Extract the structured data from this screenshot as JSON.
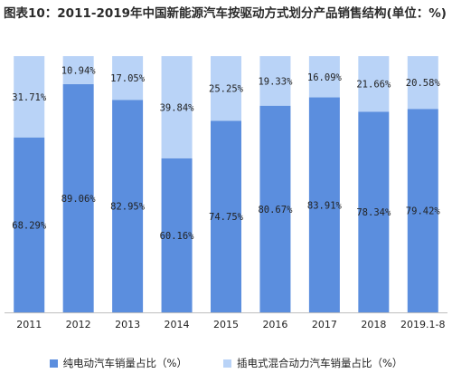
{
  "chart_data": {
    "type": "bar",
    "stacked": true,
    "percent": true,
    "title": "图表10：2011-2019年中国新能源汽车按驱动方式划分产品销售结构(单位：%)",
    "categories": [
      "2011",
      "2012",
      "2013",
      "2014",
      "2015",
      "2016",
      "2017",
      "2018",
      "2019.1-8"
    ],
    "series": [
      {
        "name": "纯电动汽车销量占比（%）",
        "color": "#5b8ede",
        "values": [
          68.29,
          89.06,
          82.95,
          60.16,
          74.75,
          80.67,
          83.91,
          78.34,
          79.42
        ],
        "labels": [
          "68.29%",
          "89.06%",
          "82.95%",
          "60.16%",
          "74.75%",
          "80.67%",
          "83.91%",
          "78.34%",
          "79.42%"
        ]
      },
      {
        "name": "插电式混合动力汽车销量占比（%）",
        "color": "#b9d3f7",
        "values": [
          31.71,
          10.94,
          17.05,
          39.84,
          25.25,
          19.33,
          16.09,
          21.66,
          20.58
        ],
        "labels": [
          "31.71%",
          "10.94%",
          "17.05%",
          "39.84%",
          "25.25%",
          "19.33%",
          "16.09%",
          "21.66%",
          "20.58%"
        ]
      }
    ],
    "ylim": [
      0,
      100
    ],
    "grid": false,
    "legend": "bottom"
  }
}
